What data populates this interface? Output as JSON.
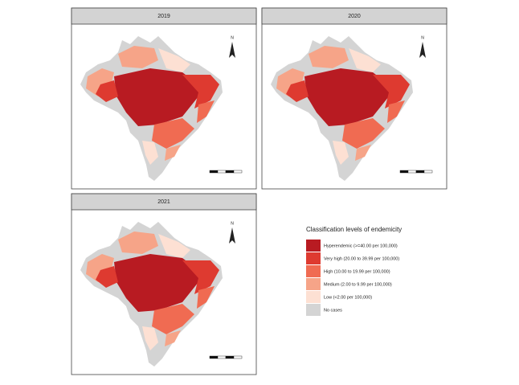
{
  "panels": [
    {
      "title": "2019",
      "north": "N"
    },
    {
      "title": "2020",
      "north": "N"
    },
    {
      "title": "2021",
      "north": "N"
    }
  ],
  "legend": {
    "title": "Classification levels of endemicity",
    "items": [
      {
        "label": "Hyperendemic (>=40.00 per 100,000)",
        "color": "#b81b22"
      },
      {
        "label": "Very high (20.00 to 39.99 per 100,000)",
        "color": "#de3a30"
      },
      {
        "label": "High (10.00 to 19.99 per 100,000)",
        "color": "#f06b52"
      },
      {
        "label": "Medium (2.00 to 9.99 per 100,000)",
        "color": "#f6a488"
      },
      {
        "label": "Low (<2.00 per 100,000)",
        "color": "#fde0d3"
      },
      {
        "label": "No cases",
        "color": "#d4d4d4"
      }
    ]
  }
}
